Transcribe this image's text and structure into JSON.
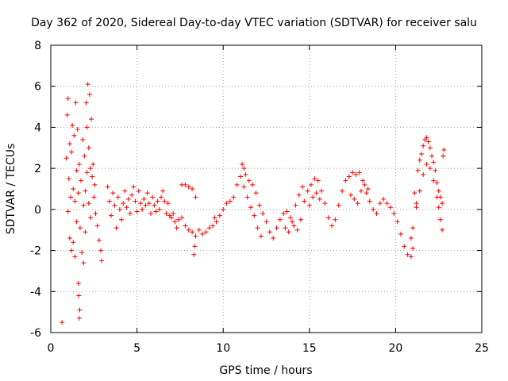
{
  "chart_data": {
    "type": "scatter",
    "title": "Day 362 of 2020, Sidereal Day-to-day VTEC variation (SDTVAR) for receiver salu",
    "xlabel": "GPS time / hours",
    "ylabel": "SDTVAR / TECUs",
    "xlim": [
      0,
      25
    ],
    "ylim": [
      -6,
      8
    ],
    "xticks": [
      0,
      5,
      10,
      15,
      20,
      25
    ],
    "yticks": [
      -6,
      -4,
      -2,
      0,
      2,
      4,
      6,
      8
    ],
    "grid": true,
    "marker": "+",
    "color": "#ff0000",
    "series": [
      {
        "name": "SDTVAR",
        "points": [
          [
            0.65,
            -5.5
          ],
          [
            0.9,
            2.5
          ],
          [
            0.95,
            4.6
          ],
          [
            1.0,
            5.4
          ],
          [
            1.0,
            -0.1
          ],
          [
            1.05,
            1.5
          ],
          [
            1.1,
            3.2
          ],
          [
            1.1,
            -1.4
          ],
          [
            1.15,
            0.6
          ],
          [
            1.2,
            2.8
          ],
          [
            1.2,
            -2.0
          ],
          [
            1.25,
            4.1
          ],
          [
            1.3,
            1.0
          ],
          [
            1.3,
            -1.6
          ],
          [
            1.35,
            3.6
          ],
          [
            1.4,
            0.4
          ],
          [
            1.4,
            -2.3
          ],
          [
            1.45,
            5.2
          ],
          [
            1.5,
            1.9
          ],
          [
            1.5,
            -0.6
          ],
          [
            1.55,
            3.9
          ],
          [
            1.6,
            0.8
          ],
          [
            1.6,
            -3.6
          ],
          [
            1.62,
            -4.2
          ],
          [
            1.65,
            2.2
          ],
          [
            1.65,
            -5.3
          ],
          [
            1.68,
            -4.9
          ],
          [
            1.7,
            -0.9
          ],
          [
            1.75,
            1.4
          ],
          [
            1.8,
            -2.1
          ],
          [
            1.85,
            3.4
          ],
          [
            1.9,
            0.2
          ],
          [
            1.9,
            -2.6
          ],
          [
            1.95,
            2.6
          ],
          [
            2.0,
            0.9
          ],
          [
            2.0,
            -1.1
          ],
          [
            2.05,
            5.2
          ],
          [
            2.1,
            4.0
          ],
          [
            2.1,
            1.8
          ],
          [
            2.15,
            6.1
          ],
          [
            2.2,
            3.0
          ],
          [
            2.2,
            0.3
          ],
          [
            2.25,
            5.6
          ],
          [
            2.3,
            2.0
          ],
          [
            2.3,
            -0.4
          ],
          [
            2.35,
            4.4
          ],
          [
            2.4,
            1.6
          ],
          [
            2.45,
            2.2
          ],
          [
            2.5,
            0.6
          ],
          [
            2.55,
            1.2
          ],
          [
            2.6,
            -0.2
          ],
          [
            2.7,
            -0.8
          ],
          [
            2.8,
            -1.5
          ],
          [
            2.9,
            -2.0
          ],
          [
            2.95,
            -2.5
          ],
          [
            3.3,
            1.1
          ],
          [
            3.4,
            0.4
          ],
          [
            3.5,
            -0.3
          ],
          [
            3.6,
            0.8
          ],
          [
            3.7,
            0.2
          ],
          [
            3.8,
            -0.9
          ],
          [
            3.9,
            0.6
          ],
          [
            4.0,
            0.0
          ],
          [
            4.1,
            -0.5
          ],
          [
            4.2,
            0.3
          ],
          [
            4.3,
            0.9
          ],
          [
            4.4,
            0.1
          ],
          [
            4.5,
            0.5
          ],
          [
            4.6,
            -0.2
          ],
          [
            4.7,
            0.7
          ],
          [
            4.8,
            1.1
          ],
          [
            4.9,
            0.4
          ],
          [
            5.0,
            -0.1
          ],
          [
            5.1,
            0.9
          ],
          [
            5.2,
            0.3
          ],
          [
            5.3,
            0.0
          ],
          [
            5.4,
            0.5
          ],
          [
            5.5,
            0.2
          ],
          [
            5.6,
            0.8
          ],
          [
            5.7,
            0.3
          ],
          [
            5.8,
            -0.2
          ],
          [
            5.9,
            0.6
          ],
          [
            6.0,
            0.2
          ],
          [
            6.1,
            -0.1
          ],
          [
            6.2,
            0.4
          ],
          [
            6.3,
            0.0
          ],
          [
            6.4,
            0.6
          ],
          [
            6.5,
            0.9
          ],
          [
            6.6,
            0.4
          ],
          [
            6.7,
            -0.2
          ],
          [
            6.8,
            0.3
          ],
          [
            6.9,
            -0.3
          ],
          [
            7.0,
            -0.4
          ],
          [
            7.1,
            -0.2
          ],
          [
            7.2,
            -0.6
          ],
          [
            7.3,
            -0.9
          ],
          [
            7.4,
            -0.5
          ],
          [
            7.6,
            1.2
          ],
          [
            7.8,
            1.2
          ],
          [
            8.0,
            1.1
          ],
          [
            8.2,
            1.0
          ],
          [
            8.4,
            0.6
          ],
          [
            8.3,
            -2.2
          ],
          [
            8.35,
            -1.8
          ],
          [
            7.6,
            -0.4
          ],
          [
            7.8,
            -0.8
          ],
          [
            8.0,
            -1.0
          ],
          [
            8.2,
            -1.1
          ],
          [
            8.4,
            -1.3
          ],
          [
            8.6,
            -1.0
          ],
          [
            8.8,
            -1.2
          ],
          [
            9.0,
            -1.1
          ],
          [
            9.2,
            -0.9
          ],
          [
            9.4,
            -0.8
          ],
          [
            9.5,
            -0.4
          ],
          [
            9.6,
            -0.6
          ],
          [
            9.8,
            -0.3
          ],
          [
            10.0,
            0.0
          ],
          [
            10.2,
            0.3
          ],
          [
            10.4,
            0.4
          ],
          [
            10.6,
            0.6
          ],
          [
            10.8,
            1.2
          ],
          [
            11.0,
            1.6
          ],
          [
            11.1,
            2.2
          ],
          [
            11.2,
            2.0
          ],
          [
            11.3,
            1.7
          ],
          [
            11.5,
            1.4
          ],
          [
            11.7,
            1.2
          ],
          [
            11.9,
            0.8
          ],
          [
            12.1,
            0.2
          ],
          [
            12.3,
            -0.2
          ],
          [
            12.5,
            -0.6
          ],
          [
            12.7,
            -1.1
          ],
          [
            12.9,
            -1.4
          ],
          [
            13.1,
            -0.9
          ],
          [
            13.3,
            -0.5
          ],
          [
            13.5,
            -0.2
          ],
          [
            13.7,
            -0.1
          ],
          [
            13.9,
            -0.4
          ],
          [
            14.1,
            -0.8
          ],
          [
            14.3,
            -1.0
          ],
          [
            14.5,
            -0.5
          ],
          [
            14.7,
            0.4
          ],
          [
            14.9,
            0.9
          ],
          [
            15.1,
            1.2
          ],
          [
            15.3,
            1.5
          ],
          [
            15.5,
            1.4
          ],
          [
            15.7,
            0.9
          ],
          [
            15.9,
            0.3
          ],
          [
            16.1,
            -0.4
          ],
          [
            16.3,
            -0.8
          ],
          [
            16.5,
            -0.5
          ],
          [
            16.7,
            0.2
          ],
          [
            16.9,
            0.9
          ],
          [
            17.1,
            1.4
          ],
          [
            17.3,
            1.6
          ],
          [
            17.5,
            1.8
          ],
          [
            17.7,
            1.7
          ],
          [
            17.9,
            1.8
          ],
          [
            18.1,
            1.4
          ],
          [
            18.3,
            0.8
          ],
          [
            18.5,
            0.4
          ],
          [
            18.7,
            0.0
          ],
          [
            18.9,
            -0.2
          ],
          [
            19.1,
            0.3
          ],
          [
            19.3,
            0.5
          ],
          [
            19.5,
            0.3
          ],
          [
            19.7,
            0.1
          ],
          [
            19.9,
            -0.2
          ],
          [
            20.1,
            -0.6
          ],
          [
            20.3,
            -1.2
          ],
          [
            20.5,
            -1.8
          ],
          [
            20.7,
            -2.2
          ],
          [
            20.9,
            -2.3
          ],
          [
            21.0,
            -1.9
          ],
          [
            21.1,
            0.8
          ],
          [
            21.2,
            0.3
          ],
          [
            21.3,
            1.9
          ],
          [
            21.4,
            2.4
          ],
          [
            21.5,
            2.7
          ],
          [
            21.6,
            3.1
          ],
          [
            21.7,
            3.4
          ],
          [
            21.8,
            3.5
          ],
          [
            21.9,
            3.3
          ],
          [
            22.0,
            3.0
          ],
          [
            22.1,
            2.6
          ],
          [
            22.2,
            2.3
          ],
          [
            22.3,
            1.9
          ],
          [
            22.4,
            1.3
          ],
          [
            22.5,
            0.9
          ],
          [
            22.6,
            0.6
          ],
          [
            22.7,
            0.3
          ],
          [
            22.75,
            2.6
          ],
          [
            22.8,
            2.9
          ],
          [
            20.9,
            -1.4
          ],
          [
            21.0,
            -0.9
          ],
          [
            21.2,
            0.1
          ],
          [
            21.4,
            0.9
          ],
          [
            21.6,
            1.7
          ],
          [
            21.8,
            2.2
          ],
          [
            22.0,
            2.0
          ],
          [
            22.2,
            1.4
          ],
          [
            22.4,
            0.6
          ],
          [
            22.5,
            0.1
          ],
          [
            22.6,
            -0.5
          ],
          [
            22.7,
            -1.0
          ],
          [
            11.2,
            1.1
          ],
          [
            11.4,
            0.6
          ],
          [
            11.6,
            0.1
          ],
          [
            11.8,
            -0.3
          ],
          [
            12.0,
            -0.9
          ],
          [
            12.2,
            -1.3
          ],
          [
            15.0,
            0.2
          ],
          [
            15.2,
            0.6
          ],
          [
            15.4,
            0.8
          ],
          [
            15.6,
            0.5
          ],
          [
            17.4,
            0.7
          ],
          [
            17.6,
            0.5
          ],
          [
            17.8,
            0.3
          ],
          [
            18.0,
            0.9
          ],
          [
            18.2,
            1.2
          ],
          [
            18.4,
            1.0
          ],
          [
            13.6,
            -0.9
          ],
          [
            13.8,
            -1.1
          ],
          [
            14.0,
            -0.6
          ],
          [
            14.2,
            0.2
          ],
          [
            14.4,
            0.7
          ],
          [
            14.6,
            1.1
          ]
        ]
      }
    ]
  }
}
